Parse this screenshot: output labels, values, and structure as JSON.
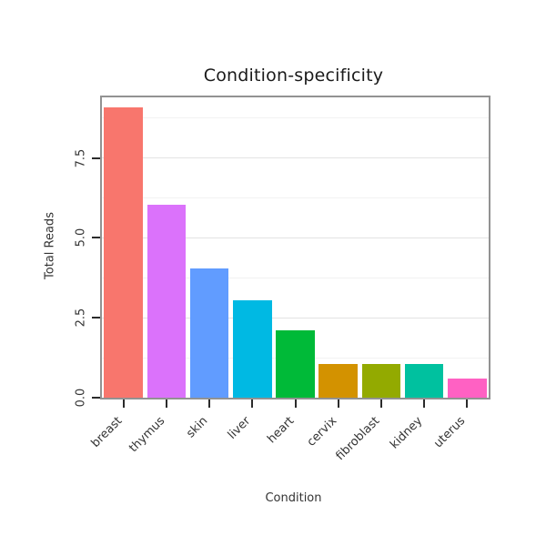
{
  "chart_data": {
    "type": "bar",
    "title": "Condition-specificity",
    "xlabel": "Condition",
    "ylabel": "Total Reads",
    "categories": [
      "breast",
      "thymus",
      "skin",
      "liver",
      "heart",
      "cervix",
      "fibroblast",
      "kidney",
      "uterus"
    ],
    "values": [
      9.1,
      6.05,
      4.05,
      3.05,
      2.1,
      1.05,
      1.05,
      1.05,
      0.6
    ],
    "bar_colors": [
      "#F8766D",
      "#DB72FB",
      "#619CFF",
      "#00B9E3",
      "#00BA38",
      "#D39200",
      "#93AA00",
      "#00C19F",
      "#FF61C3"
    ],
    "ylim": [
      0,
      9.4
    ],
    "yticks": [
      0,
      2.5,
      5,
      7.5
    ],
    "ytick_labels": [
      "0.0",
      "2.5",
      "5.0",
      "7.5"
    ],
    "minor_gridlines": [
      1.25,
      3.75,
      6.25,
      8.75
    ],
    "grid": "horizontal",
    "legend": "none",
    "panel_border_color": "#929292",
    "major_grid_color": "#e3e3e3",
    "minor_grid_color": "#f2f2f2"
  }
}
